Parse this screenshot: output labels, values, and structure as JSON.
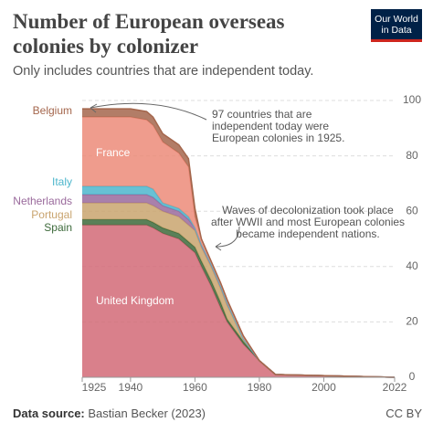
{
  "header": {
    "title": "Number of European overseas colonies by colonizer",
    "subtitle": "Only includes countries that are independent today.",
    "logo": [
      "Our World",
      "in Data"
    ]
  },
  "chart_data": {
    "type": "area",
    "stacked": true,
    "x": [
      1925,
      1930,
      1935,
      1940,
      1945,
      1947,
      1950,
      1955,
      1958,
      1960,
      1962,
      1965,
      1968,
      1970,
      1975,
      1980,
      1985,
      2022
    ],
    "series": [
      {
        "name": "United Kingdom",
        "color": "#d26a77",
        "values": [
          55,
          55,
          55,
          55,
          55,
          54,
          52,
          50,
          47,
          45,
          40,
          33,
          25,
          20,
          12,
          6,
          1,
          0
        ]
      },
      {
        "name": "Spain",
        "color": "#3d6a3b",
        "values": [
          2,
          2,
          2,
          2,
          2,
          2,
          2,
          2,
          2,
          2,
          2,
          2,
          2,
          1,
          1,
          0,
          0,
          0
        ]
      },
      {
        "name": "Portugal",
        "color": "#c9a46f",
        "values": [
          6,
          6,
          6,
          6,
          6,
          6,
          6,
          6,
          6,
          6,
          5,
          5,
          5,
          5,
          1,
          0,
          0,
          0
        ]
      },
      {
        "name": "Netherlands",
        "color": "#9a6a9c",
        "values": [
          3,
          3,
          3,
          3,
          3,
          3,
          2,
          2,
          2,
          1,
          1,
          1,
          1,
          1,
          0,
          0,
          0,
          0
        ]
      },
      {
        "name": "Italy",
        "color": "#4db6cc",
        "values": [
          3,
          3,
          3,
          3,
          3,
          3,
          1,
          1,
          1,
          0,
          0,
          0,
          0,
          0,
          0,
          0,
          0,
          0
        ]
      },
      {
        "name": "France",
        "color": "#ec8b79",
        "values": [
          25,
          25,
          25,
          25,
          24,
          23,
          22,
          20,
          18,
          4,
          2,
          1,
          1,
          1,
          1,
          0,
          0,
          0
        ]
      },
      {
        "name": "Belgium",
        "color": "#a4664c",
        "values": [
          3,
          3,
          3,
          3,
          3,
          3,
          3,
          3,
          3,
          3,
          0,
          0,
          0,
          0,
          0,
          0,
          0,
          0
        ]
      }
    ],
    "xlim": [
      1925,
      2022
    ],
    "xticks": [
      1925,
      1940,
      1960,
      1980,
      2000,
      2022
    ],
    "ylim": [
      0,
      100
    ],
    "yticks": [
      0,
      20,
      40,
      60,
      80,
      100
    ],
    "grid": true,
    "annotations": [
      {
        "lines": [
          "97 countries that are",
          "independent today were",
          "European colonies in 1925."
        ]
      },
      {
        "lines": [
          "Waves of decolonization took place",
          "after WWII and most European colonies",
          "became independent nations."
        ]
      }
    ]
  },
  "footer": {
    "source_label": "Data source:",
    "source": "Bastian Becker (2023)",
    "license": "CC BY"
  }
}
